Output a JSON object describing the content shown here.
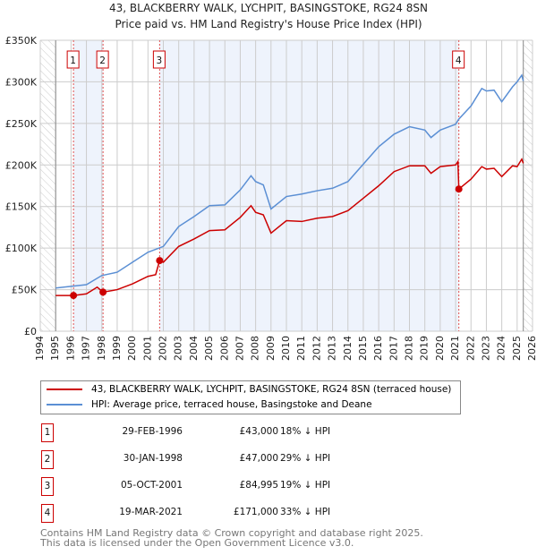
{
  "chart_data": {
    "type": "line",
    "title": "43, BLACKBERRY WALK, LYCHPIT, BASINGSTOKE, RG24 8SN",
    "subtitle": "Price paid vs. HM Land Registry's House Price Index (HPI)",
    "xlim": [
      1994,
      2026
    ],
    "ylim": [
      0,
      350000
    ],
    "x_ticks": [
      "1994",
      "1995",
      "1996",
      "1997",
      "1998",
      "1999",
      "2000",
      "2001",
      "2002",
      "2003",
      "2004",
      "2005",
      "2006",
      "2007",
      "2008",
      "2009",
      "2010",
      "2011",
      "2012",
      "2013",
      "2014",
      "2015",
      "2016",
      "2017",
      "2018",
      "2019",
      "2020",
      "2021",
      "2022",
      "2023",
      "2024",
      "2025",
      "2026"
    ],
    "y_ticks": [
      {
        "v": 0,
        "label": "£0"
      },
      {
        "v": 50000,
        "label": "£50K"
      },
      {
        "v": 100000,
        "label": "£100K"
      },
      {
        "v": 150000,
        "label": "£150K"
      },
      {
        "v": 200000,
        "label": "£200K"
      },
      {
        "v": 250000,
        "label": "£250K"
      },
      {
        "v": 300000,
        "label": "£300K"
      },
      {
        "v": 350000,
        "label": "£350K"
      }
    ],
    "hatched_before": 1995,
    "hatched_after": 2025.4,
    "shaded_bands": [
      [
        1996.16,
        1998.08
      ],
      [
        2001.76,
        2021.21
      ]
    ],
    "series": [
      {
        "name": "43, BLACKBERRY WALK, LYCHPIT, BASINGSTOKE, RG24 8SN (terraced house)",
        "color": "#cc0000",
        "points": [
          [
            1995,
            43000
          ],
          [
            1996.16,
            43000
          ],
          [
            1997,
            45000
          ],
          [
            1997.7,
            53000
          ],
          [
            1998.08,
            47000
          ],
          [
            1999,
            50000
          ],
          [
            2000,
            57000
          ],
          [
            2001,
            66000
          ],
          [
            2001.5,
            68000
          ],
          [
            2001.76,
            85000
          ],
          [
            2002,
            83000
          ],
          [
            2003,
            102000
          ],
          [
            2004,
            111000
          ],
          [
            2005,
            121000
          ],
          [
            2006,
            122000
          ],
          [
            2007,
            137000
          ],
          [
            2007.7,
            151000
          ],
          [
            2008,
            143000
          ],
          [
            2008.5,
            140000
          ],
          [
            2009,
            118000
          ],
          [
            2010,
            133000
          ],
          [
            2011,
            132000
          ],
          [
            2012,
            136000
          ],
          [
            2013,
            138000
          ],
          [
            2014,
            145000
          ],
          [
            2015,
            160000
          ],
          [
            2016,
            175000
          ],
          [
            2017,
            192000
          ],
          [
            2018,
            199000
          ],
          [
            2019,
            199000
          ],
          [
            2019.4,
            190000
          ],
          [
            2020,
            198000
          ],
          [
            2021,
            200000
          ],
          [
            2021.15,
            204000
          ],
          [
            2021.21,
            171000
          ],
          [
            2022,
            183000
          ],
          [
            2022.7,
            198000
          ],
          [
            2023,
            195000
          ],
          [
            2023.5,
            196000
          ],
          [
            2024,
            186000
          ],
          [
            2024.7,
            199000
          ],
          [
            2025,
            198000
          ],
          [
            2025.3,
            207000
          ],
          [
            2025.4,
            202000
          ]
        ]
      },
      {
        "name": "HPI: Average price, terraced house, Basingstoke and Deane",
        "color": "#5b8fd4",
        "points": [
          [
            1995,
            52000
          ],
          [
            1996,
            54000
          ],
          [
            1997,
            56000
          ],
          [
            1998,
            67000
          ],
          [
            1999,
            71000
          ],
          [
            2000,
            83000
          ],
          [
            2001,
            95000
          ],
          [
            2002,
            102000
          ],
          [
            2003,
            126000
          ],
          [
            2004,
            138000
          ],
          [
            2005,
            151000
          ],
          [
            2006,
            152000
          ],
          [
            2007,
            170000
          ],
          [
            2007.7,
            187000
          ],
          [
            2008,
            180000
          ],
          [
            2008.5,
            176000
          ],
          [
            2009,
            147000
          ],
          [
            2010,
            162000
          ],
          [
            2011,
            165000
          ],
          [
            2012,
            169000
          ],
          [
            2013,
            172000
          ],
          [
            2014,
            180000
          ],
          [
            2015,
            201000
          ],
          [
            2016,
            222000
          ],
          [
            2017,
            237000
          ],
          [
            2018,
            246000
          ],
          [
            2019,
            242000
          ],
          [
            2019.4,
            233000
          ],
          [
            2020,
            242000
          ],
          [
            2021,
            249000
          ],
          [
            2021.2,
            255000
          ],
          [
            2022,
            271000
          ],
          [
            2022.7,
            292000
          ],
          [
            2023,
            289000
          ],
          [
            2023.5,
            290000
          ],
          [
            2024,
            276000
          ],
          [
            2024.7,
            294000
          ],
          [
            2025,
            300000
          ],
          [
            2025.3,
            308000
          ],
          [
            2025.4,
            301000
          ]
        ]
      }
    ],
    "sales": [
      {
        "n": "1",
        "x": 1996.16,
        "price_value": 43000
      },
      {
        "n": "2",
        "x": 1998.08,
        "price_value": 47000
      },
      {
        "n": "3",
        "x": 2001.76,
        "price_value": 84995
      },
      {
        "n": "4",
        "x": 2021.21,
        "price_value": 171000
      }
    ]
  },
  "legend": {
    "red": "43, BLACKBERRY WALK, LYCHPIT, BASINGSTOKE, RG24 8SN (terraced house)",
    "blue": "HPI: Average price, terraced house, Basingstoke and Deane"
  },
  "table": [
    {
      "n": "1",
      "date": "29-FEB-1996",
      "price": "£43,000",
      "hpi": "18% ↓ HPI"
    },
    {
      "n": "2",
      "date": "30-JAN-1998",
      "price": "£47,000",
      "hpi": "29% ↓ HPI"
    },
    {
      "n": "3",
      "date": "05-OCT-2001",
      "price": "£84,995",
      "hpi": "19% ↓ HPI"
    },
    {
      "n": "4",
      "date": "19-MAR-2021",
      "price": "£171,000",
      "hpi": "33% ↓ HPI"
    }
  ],
  "footer": {
    "line1": "Contains HM Land Registry data © Crown copyright and database right 2025.",
    "line2": "This data is licensed under the Open Government Licence v3.0."
  }
}
